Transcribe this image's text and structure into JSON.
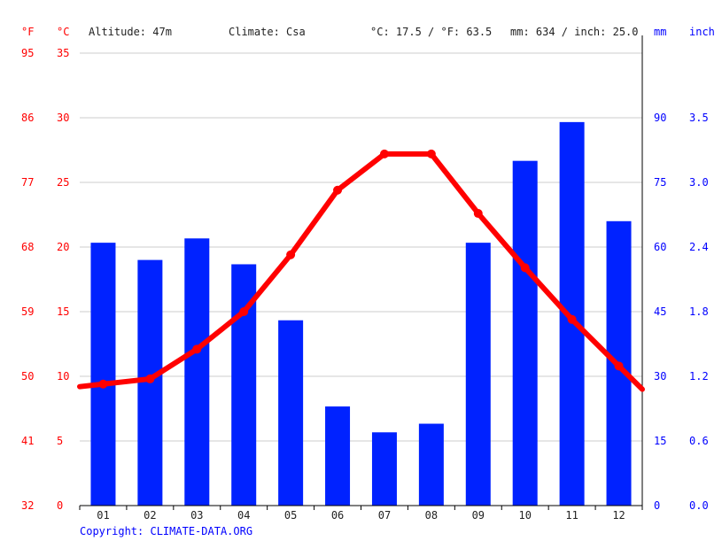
{
  "header": {
    "unit_f": "°F",
    "unit_c": "°C",
    "altitude": "Altitude: 47m",
    "climate": "Climate: Csa",
    "avg_temp": "°C: 17.5 / °F: 63.5",
    "precip_total": "mm: 634 / inch: 25.0",
    "unit_mm": "mm",
    "unit_inch": "inch"
  },
  "footer": {
    "copyright": "Copyright: CLIMATE-DATA.ORG"
  },
  "colors": {
    "temperature": "#ff0000",
    "precipitation": "#0022ff",
    "grid": "#cccccc"
  },
  "chart_data": {
    "type": "bar",
    "categories": [
      "01",
      "02",
      "03",
      "04",
      "05",
      "06",
      "07",
      "08",
      "09",
      "10",
      "11",
      "12"
    ],
    "series": [
      {
        "type": "bar",
        "axis": "right",
        "values": [
          61,
          57,
          62,
          56,
          43,
          23,
          17,
          19,
          61,
          80,
          89,
          66
        ]
      },
      {
        "type": "line",
        "axis": "left",
        "values": [
          9.4,
          9.8,
          12.1,
          15.0,
          19.4,
          24.4,
          27.2,
          27.2,
          22.6,
          18.4,
          14.4,
          10.8
        ]
      }
    ],
    "left_axis": {
      "ylim": [
        0,
        35
      ],
      "celsius_ticks": [
        "0",
        "5",
        "10",
        "15",
        "20",
        "25",
        "30",
        "35"
      ],
      "fahrenheit_ticks": [
        "32",
        "41",
        "50",
        "59",
        "68",
        "77",
        "86",
        "95"
      ]
    },
    "right_axis": {
      "ylim": [
        0,
        105
      ],
      "mm_ticks": [
        "0",
        "15",
        "30",
        "45",
        "60",
        "75",
        "90"
      ],
      "inch_ticks": [
        "0.0",
        "0.6",
        "1.2",
        "1.8",
        "2.4",
        "3.0",
        "3.5"
      ]
    },
    "grid": true
  }
}
